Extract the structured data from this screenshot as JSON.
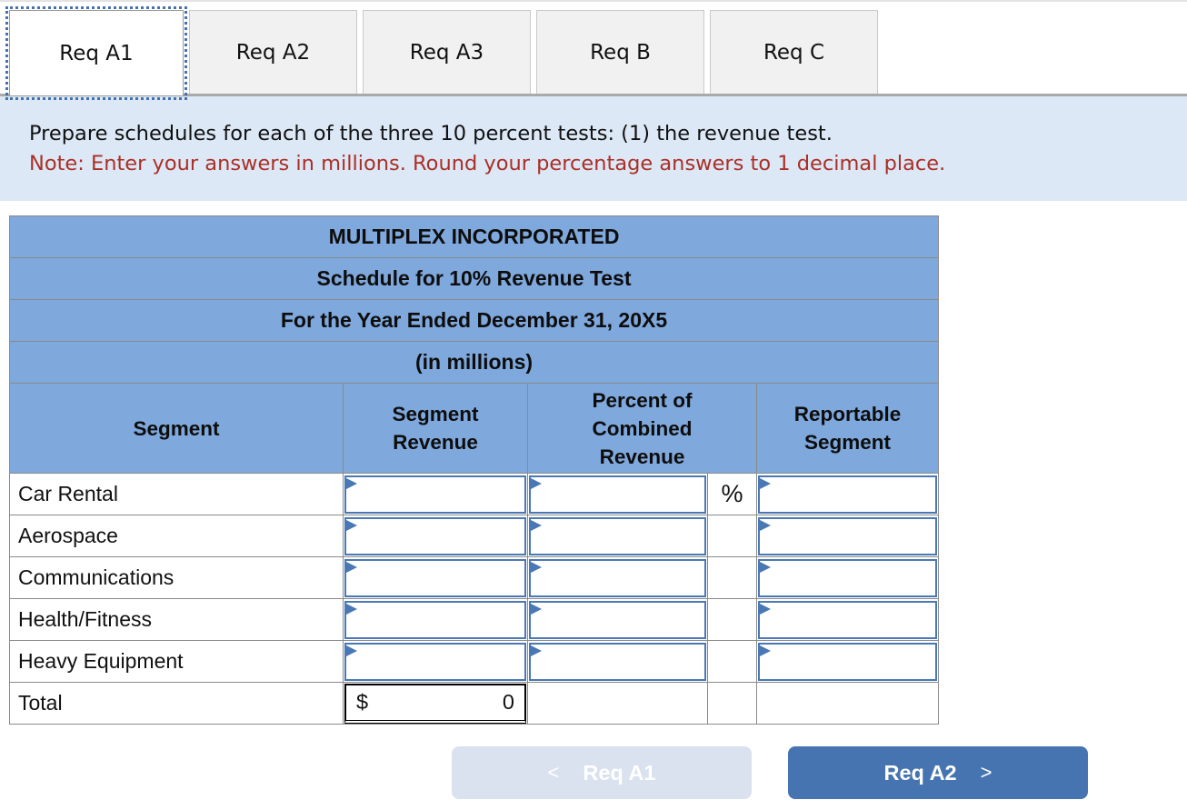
{
  "tabs": [
    {
      "label": "Req A1",
      "active": true
    },
    {
      "label": "Req A2",
      "active": false
    },
    {
      "label": "Req A3",
      "active": false
    },
    {
      "label": "Req B",
      "active": false
    },
    {
      "label": "Req C",
      "active": false
    }
  ],
  "instructions": {
    "line1": "Prepare schedules for each of the three 10 percent tests: (1) the revenue test.",
    "note": "Note: Enter your answers in millions. Round your percentage answers to 1 decimal place."
  },
  "schedule": {
    "title_lines": [
      "MULTIPLEX INCORPORATED",
      "Schedule for 10% Revenue Test",
      "For the Year Ended December 31, 20X5",
      "(in millions)"
    ],
    "columns": [
      "Segment",
      "Segment Revenue",
      "Percent of Combined Revenue",
      "Reportable Segment"
    ],
    "percent_symbol": "%",
    "rows": [
      {
        "segment": "Car Rental",
        "segment_revenue": "",
        "percent_of_combined_revenue": "",
        "reportable_segment": ""
      },
      {
        "segment": "Aerospace",
        "segment_revenue": "",
        "percent_of_combined_revenue": "",
        "reportable_segment": ""
      },
      {
        "segment": "Communications",
        "segment_revenue": "",
        "percent_of_combined_revenue": "",
        "reportable_segment": ""
      },
      {
        "segment": "Health/Fitness",
        "segment_revenue": "",
        "percent_of_combined_revenue": "",
        "reportable_segment": ""
      },
      {
        "segment": "Heavy Equipment",
        "segment_revenue": "",
        "percent_of_combined_revenue": "",
        "reportable_segment": ""
      }
    ],
    "total": {
      "label": "Total",
      "currency_symbol": "$",
      "value": "0"
    }
  },
  "footer_nav": {
    "prev_chevron": "<",
    "prev_label": "Req A1",
    "next_label": "Req A2",
    "next_chevron": ">"
  },
  "colors": {
    "header_blue": "#7fa8dc",
    "panel_blue": "#dce8f6",
    "note_red": "#ab2f26",
    "input_border_blue": "#4a78b4",
    "button_primary": "#4674b0",
    "button_disabled": "#d9e2ee",
    "grid_gray": "#8a8a8a"
  }
}
